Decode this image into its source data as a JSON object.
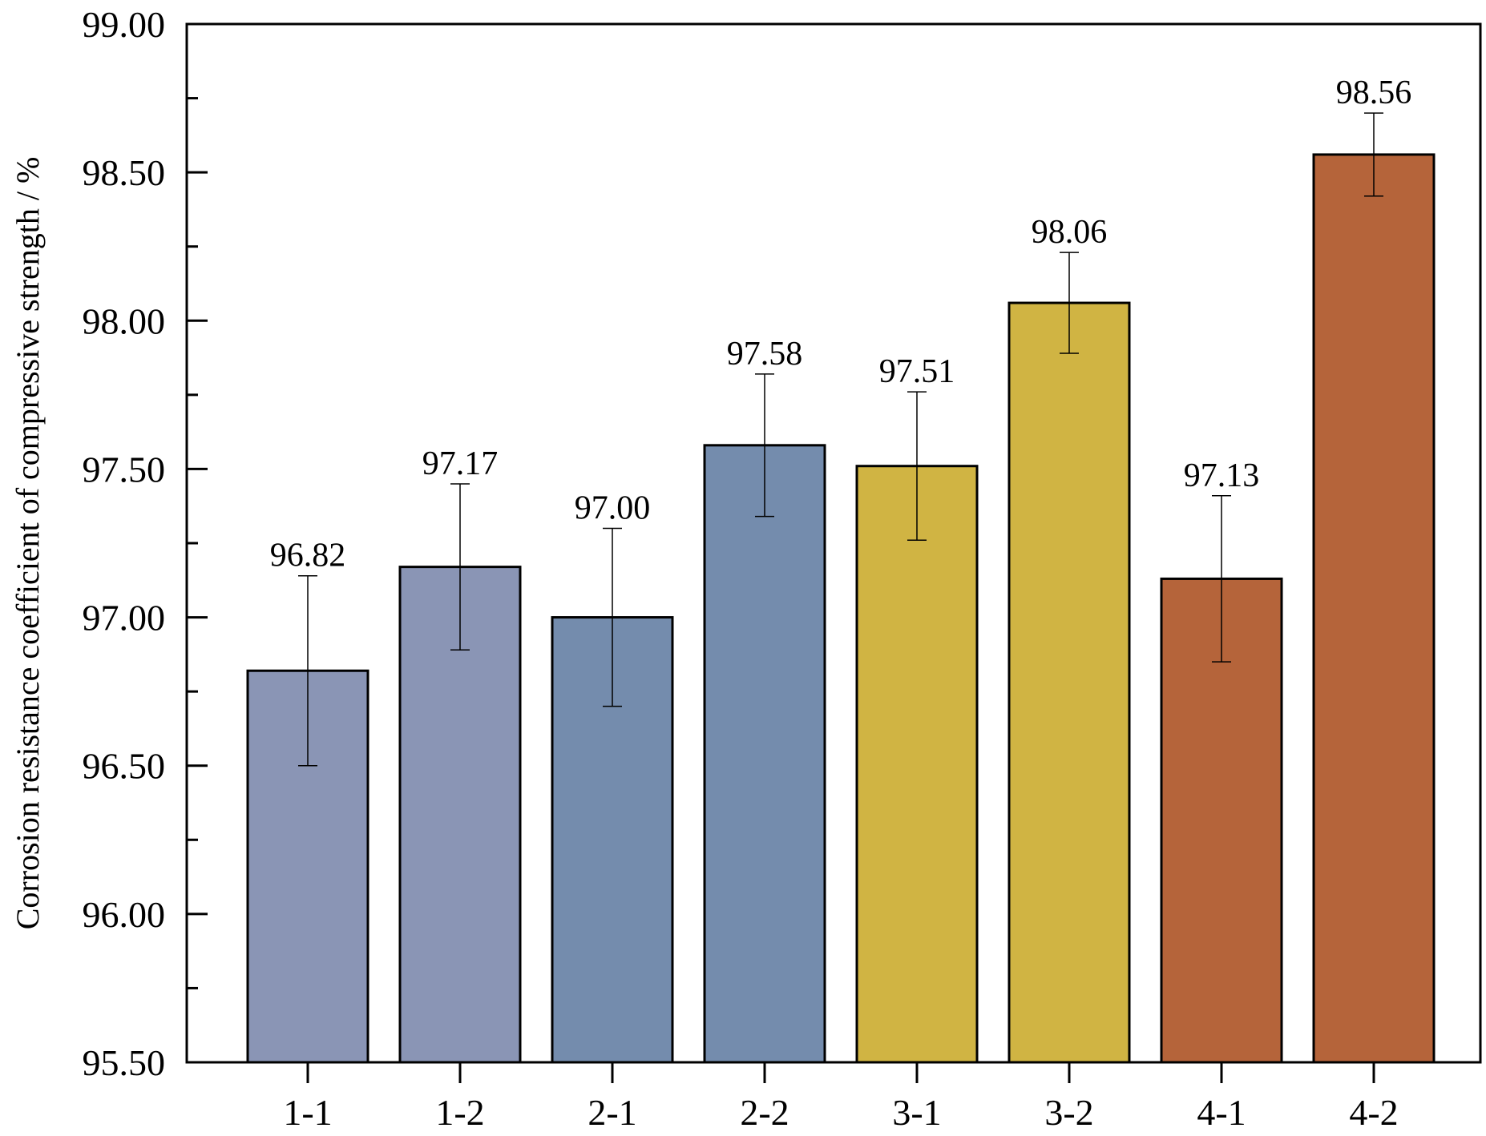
{
  "chart_data": {
    "type": "bar",
    "title": "",
    "xlabel": "",
    "ylabel": "Corrosion resistance coefficient of compressive strength / %",
    "categories": [
      "1-1",
      "1-2",
      "2-1",
      "2-2",
      "3-1",
      "3-2",
      "4-1",
      "4-2"
    ],
    "values": [
      96.82,
      97.17,
      97.0,
      97.58,
      97.51,
      98.06,
      97.13,
      98.56
    ],
    "value_labels": [
      "96.82",
      "97.17",
      "97.00",
      "97.58",
      "97.51",
      "98.06",
      "97.13",
      "98.56"
    ],
    "errors": [
      0.32,
      0.28,
      0.3,
      0.24,
      0.25,
      0.17,
      0.28,
      0.14
    ],
    "colors": [
      "#8a95b5",
      "#8a95b5",
      "#748cad",
      "#748cad",
      "#d0b443",
      "#d0b443",
      "#b5643a",
      "#b5643a"
    ],
    "ylim": [
      95.5,
      99.0
    ],
    "yticks": [
      95.5,
      96.0,
      96.5,
      97.0,
      97.5,
      98.0,
      98.5,
      99.0
    ],
    "ytick_labels": [
      "95.50",
      "96.00",
      "96.50",
      "97.00",
      "97.50",
      "98.00",
      "98.50",
      "99.00"
    ],
    "grid": false,
    "legend": "none"
  }
}
